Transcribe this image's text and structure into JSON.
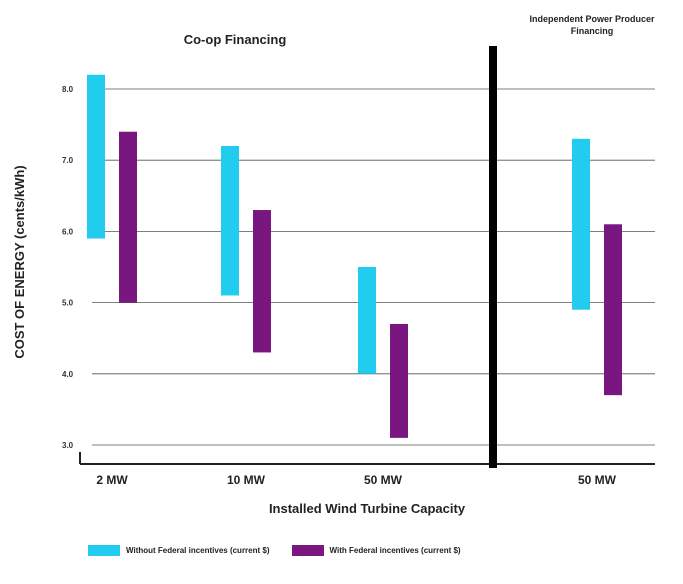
{
  "chart_data": {
    "type": "bar",
    "subtype": "floating-range",
    "groups": [
      {
        "title": "Co-op Financing",
        "categories": [
          "2 MW",
          "10 MW",
          "50 MW"
        ]
      },
      {
        "title": "Independent Power Producer Financing",
        "categories": [
          "50 MW"
        ]
      }
    ],
    "categories": [
      "2 MW",
      "10 MW",
      "50 MW",
      "50 MW"
    ],
    "series": [
      {
        "name": "Without Federal incentives (current $)",
        "color": "#22ccee",
        "ranges": [
          [
            5.9,
            8.2
          ],
          [
            5.1,
            7.2
          ],
          [
            4.0,
            5.5
          ],
          [
            4.9,
            7.3
          ]
        ]
      },
      {
        "name": "With Federal incentives (current $)",
        "color": "#7a1680",
        "ranges": [
          [
            5.0,
            7.4
          ],
          [
            4.3,
            6.3
          ],
          [
            3.1,
            4.7
          ],
          [
            3.7,
            6.1
          ]
        ]
      }
    ],
    "ylabel": "COST OF ENERGY (cents/kWh)",
    "xlabel": "Installed Wind Turbine Capacity",
    "yticks": [
      "8.0",
      "7.0",
      "6.0",
      "5.0",
      "4.0",
      "3.0"
    ],
    "ylim": [
      2.7,
      8.6
    ],
    "grid": true,
    "legend_position": "bottom",
    "divider_color": "#000000"
  }
}
